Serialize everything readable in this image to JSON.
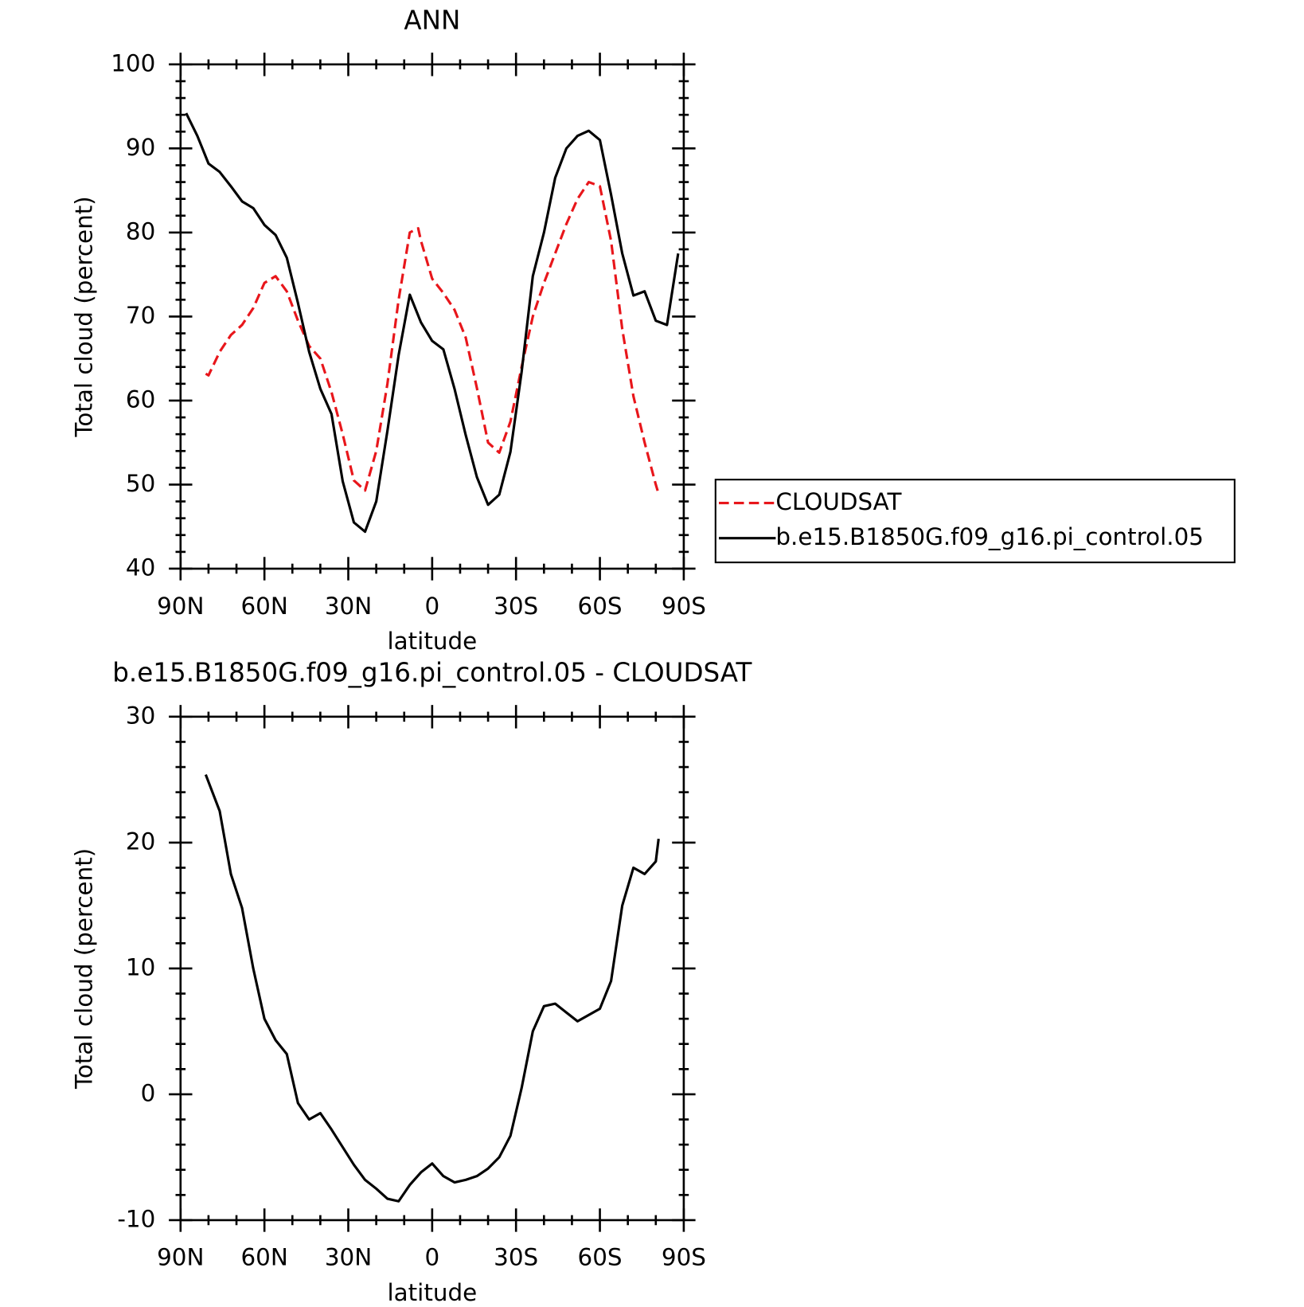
{
  "chart_data": [
    {
      "type": "line",
      "title": "ANN",
      "ylabel": "Total cloud (percent)",
      "xlabel": "latitude",
      "xlim": [
        90,
        -90
      ],
      "ylim": [
        40,
        100
      ],
      "xticks": [
        {
          "value": 90,
          "label": "90N"
        },
        {
          "value": 60,
          "label": "60N"
        },
        {
          "value": 30,
          "label": "30N"
        },
        0,
        {
          "value": -30,
          "label": "30S"
        },
        {
          "value": -60,
          "label": "60S"
        },
        {
          "value": -90,
          "label": "90S"
        }
      ],
      "yticks": [
        40,
        50,
        60,
        70,
        80,
        90,
        100
      ],
      "legend": "right",
      "series": [
        {
          "name": "CLOUDSAT",
          "color": "#e8161b",
          "dash": true,
          "x": [
            81,
            80,
            76,
            72,
            68,
            64,
            60,
            56,
            52,
            48,
            44,
            40,
            36,
            32,
            28,
            24,
            20,
            16,
            12,
            8,
            5,
            4,
            0,
            -4,
            -8,
            -12,
            -16,
            -20,
            -24,
            -28,
            -32,
            -36,
            -40,
            -44,
            -48,
            -52,
            -56,
            -60,
            -64,
            -68,
            -72,
            -76,
            -80,
            -81
          ],
          "values": [
            63.2,
            63.0,
            65.8,
            67.8,
            69.0,
            71.0,
            74.0,
            74.8,
            73.0,
            69.5,
            66.5,
            65.0,
            61.0,
            56.0,
            50.5,
            49.3,
            54.0,
            62.0,
            72.0,
            80.0,
            80.5,
            79.0,
            74.5,
            72.8,
            70.8,
            67.5,
            61.5,
            55.0,
            53.8,
            57.5,
            64.0,
            70.0,
            74.0,
            77.5,
            81.0,
            84.0,
            86.0,
            85.5,
            79.0,
            68.5,
            60.5,
            55.0,
            50.0,
            48.9
          ]
        },
        {
          "name": "b.e15.B1850G.f09_g16.pi_control.05",
          "color": "#000000",
          "dash": false,
          "x": [
            88,
            84,
            80,
            76,
            72,
            68,
            64,
            60,
            56,
            52,
            48,
            44,
            40,
            36,
            32,
            28,
            24,
            20,
            16,
            12,
            8,
            4,
            0,
            -4,
            -8,
            -12,
            -16,
            -20,
            -24,
            -28,
            -32,
            -36,
            -40,
            -44,
            -48,
            -52,
            -56,
            -60,
            -64,
            -68,
            -72,
            -76,
            -80,
            -84,
            -88
          ],
          "values": [
            94.2,
            91.5,
            88.2,
            87.2,
            85.5,
            83.7,
            82.9,
            80.9,
            79.7,
            77.0,
            71.6,
            65.8,
            61.4,
            58.4,
            50.4,
            45.5,
            44.4,
            48.0,
            56.4,
            65.4,
            72.6,
            69.3,
            67.1,
            66.1,
            61.4,
            55.9,
            50.9,
            47.6,
            48.8,
            53.9,
            63.4,
            74.8,
            80.0,
            86.5,
            90.0,
            91.5,
            92.1,
            91.0,
            84.5,
            77.5,
            72.5,
            73.0,
            69.5,
            69.0,
            77.5
          ]
        }
      ]
    },
    {
      "type": "line",
      "title": "b.e15.B1850G.f09_g16.pi_control.05 - CLOUDSAT",
      "ylabel": "Total cloud (percent)",
      "xlabel": "latitude",
      "xlim": [
        90,
        -90
      ],
      "ylim": [
        -10,
        30
      ],
      "xticks": [
        {
          "value": 90,
          "label": "90N"
        },
        {
          "value": 60,
          "label": "60N"
        },
        {
          "value": 30,
          "label": "30N"
        },
        0,
        {
          "value": -30,
          "label": "30S"
        },
        {
          "value": -60,
          "label": "60S"
        },
        {
          "value": -90,
          "label": "90S"
        }
      ],
      "yticks": [
        -10,
        0,
        10,
        20,
        30
      ],
      "series": [
        {
          "color": "#000000",
          "dash": false,
          "x": [
            81,
            76,
            72,
            68,
            64,
            60,
            56,
            52,
            48,
            44,
            40,
            36,
            32,
            28,
            24,
            20,
            16,
            12,
            8,
            4,
            0,
            -4,
            -8,
            -12,
            -16,
            -20,
            -24,
            -28,
            -32,
            -36,
            -40,
            -44,
            -48,
            -52,
            -56,
            -60,
            -64,
            -68,
            -72,
            -76,
            -80,
            -81
          ],
          "values": [
            25.4,
            22.5,
            17.5,
            14.8,
            10.0,
            6.0,
            4.3,
            3.2,
            -0.7,
            -2.0,
            -1.5,
            -2.8,
            -4.2,
            -5.6,
            -6.8,
            -7.5,
            -8.3,
            -8.5,
            -7.2,
            -6.2,
            -5.5,
            -6.5,
            -7.0,
            -6.8,
            -6.5,
            -5.9,
            -5.0,
            -3.3,
            0.5,
            5.0,
            7.0,
            7.2,
            6.5,
            5.8,
            6.3,
            6.8,
            9.0,
            15.0,
            18.0,
            17.5,
            18.5,
            20.3
          ]
        }
      ]
    }
  ]
}
